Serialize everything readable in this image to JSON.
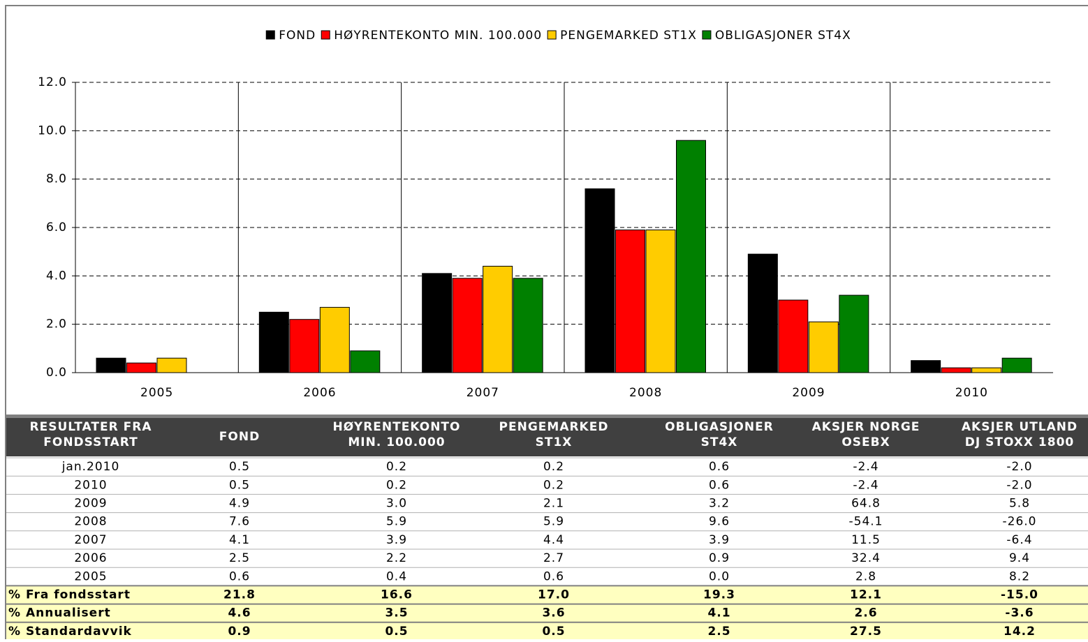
{
  "chart_data": {
    "type": "bar",
    "categories": [
      "2005",
      "2006",
      "2007",
      "2008",
      "2009",
      "2010"
    ],
    "series": [
      {
        "name": "FOND",
        "color": "#000000",
        "values": [
          0.6,
          2.5,
          4.1,
          7.6,
          4.9,
          0.5
        ]
      },
      {
        "name": "HØYRENTEKONTO MIN. 100.000",
        "color": "#ff0000",
        "values": [
          0.4,
          2.2,
          3.9,
          5.9,
          3.0,
          0.2
        ]
      },
      {
        "name": "PENGEMARKED ST1X",
        "color": "#ffcc00",
        "values": [
          0.6,
          2.7,
          4.4,
          5.9,
          2.1,
          0.2
        ]
      },
      {
        "name": "OBLIGASJONER ST4X",
        "color": "#008000",
        "values": [
          0.0,
          0.9,
          3.9,
          9.6,
          3.2,
          0.6
        ]
      }
    ],
    "ylim": [
      0,
      12
    ],
    "yticks": [
      {
        "value": 0,
        "label": "0.0"
      },
      {
        "value": 2,
        "label": "2.0"
      },
      {
        "value": 4,
        "label": "4.0"
      },
      {
        "value": 6,
        "label": "6.0"
      },
      {
        "value": 8,
        "label": "8.0"
      },
      {
        "value": 10,
        "label": "10.0"
      },
      {
        "value": 12,
        "label": "12.0"
      }
    ],
    "grid": true,
    "legend": "top"
  },
  "table": {
    "header": [
      [
        "RESULTATER FRA",
        "FONDSSTART"
      ],
      [
        "FOND"
      ],
      [
        "HØYRENTEKONTO",
        "MIN. 100.000"
      ],
      [
        "PENGEMARKED",
        "ST1X"
      ],
      [
        "OBLIGASJONER",
        "ST4X"
      ],
      [
        "AKSJER NORGE",
        "OSEBX"
      ],
      [
        "AKSJER UTLAND",
        "DJ STOXX 1800"
      ]
    ],
    "rows": [
      [
        "jan.2010",
        "0.5",
        "0.2",
        "0.2",
        "0.6",
        "-2.4",
        "-2.0"
      ],
      [
        "2010",
        "0.5",
        "0.2",
        "0.2",
        "0.6",
        "-2.4",
        "-2.0"
      ],
      [
        "2009",
        "4.9",
        "3.0",
        "2.1",
        "3.2",
        "64.8",
        "5.8"
      ],
      [
        "2008",
        "7.6",
        "5.9",
        "5.9",
        "9.6",
        "-54.1",
        "-26.0"
      ],
      [
        "2007",
        "4.1",
        "3.9",
        "4.4",
        "3.9",
        "11.5",
        "-6.4"
      ],
      [
        "2006",
        "2.5",
        "2.2",
        "2.7",
        "0.9",
        "32.4",
        "9.4"
      ],
      [
        "2005",
        "0.6",
        "0.4",
        "0.6",
        "0.0",
        "2.8",
        "8.2"
      ]
    ],
    "summary_rows": [
      [
        "% Fra fondsstart",
        "21.8",
        "16.6",
        "17.0",
        "19.3",
        "12.1",
        "-15.0"
      ],
      [
        "% Annualisert",
        "4.6",
        "3.5",
        "3.6",
        "4.1",
        "2.6",
        "-3.6"
      ],
      [
        "% Standardavvik",
        "0.9",
        "0.5",
        "0.5",
        "2.5",
        "27.5",
        "14.2"
      ]
    ]
  }
}
